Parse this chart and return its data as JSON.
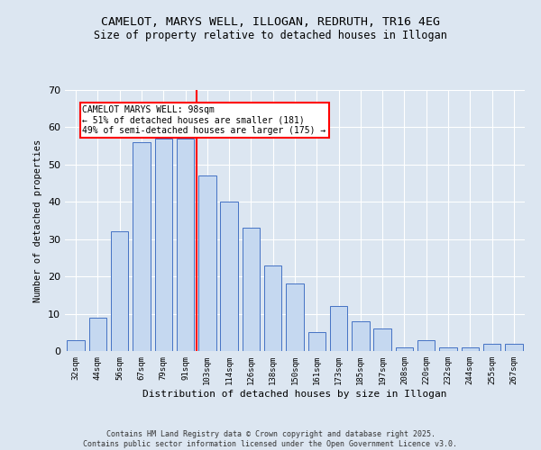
{
  "title1": "CAMELOT, MARYS WELL, ILLOGAN, REDRUTH, TR16 4EG",
  "title2": "Size of property relative to detached houses in Illogan",
  "xlabel": "Distribution of detached houses by size in Illogan",
  "ylabel": "Number of detached properties",
  "categories": [
    "32sqm",
    "44sqm",
    "56sqm",
    "67sqm",
    "79sqm",
    "91sqm",
    "103sqm",
    "114sqm",
    "126sqm",
    "138sqm",
    "150sqm",
    "161sqm",
    "173sqm",
    "185sqm",
    "197sqm",
    "208sqm",
    "220sqm",
    "232sqm",
    "244sqm",
    "255sqm",
    "267sqm"
  ],
  "values": [
    3,
    9,
    32,
    56,
    57,
    57,
    47,
    40,
    33,
    23,
    18,
    5,
    12,
    8,
    6,
    1,
    3,
    1,
    1,
    2,
    2
  ],
  "bar_color": "#c5d8f0",
  "bar_edge_color": "#4472c4",
  "background_color": "#dce6f1",
  "annotation_title": "CAMELOT MARYS WELL: 98sqm",
  "annotation_line1": "← 51% of detached houses are smaller (181)",
  "annotation_line2": "49% of semi-detached houses are larger (175) →",
  "footer1": "Contains HM Land Registry data © Crown copyright and database right 2025.",
  "footer2": "Contains public sector information licensed under the Open Government Licence v3.0.",
  "ylim": [
    0,
    70
  ],
  "yticks": [
    0,
    10,
    20,
    30,
    40,
    50,
    60,
    70
  ]
}
